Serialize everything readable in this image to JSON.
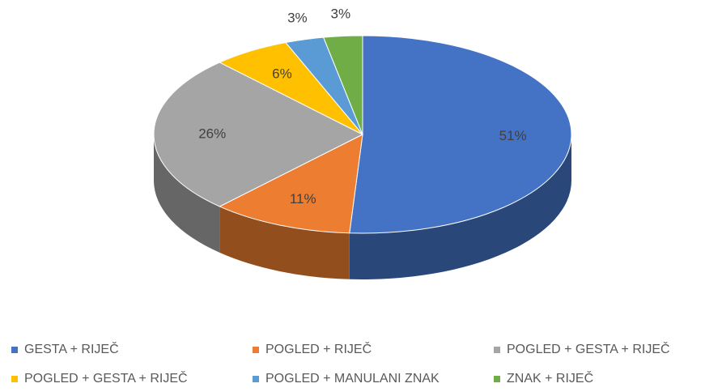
{
  "chart_data": {
    "type": "pie3d",
    "categories": [
      "GESTA + RIJEČ",
      "POGLED + RIJEČ",
      "POGLED + GESTA + RIJEČ",
      "POGLED + GESTA + RIJEČ",
      "POGLED + MANULANI ZNAK",
      "ZNAK + RIJEČ"
    ],
    "values": [
      51,
      11,
      26,
      6,
      3,
      3
    ],
    "value_labels": [
      "51%",
      "11%",
      "26%",
      "6%",
      "3%",
      "3%"
    ],
    "colors": [
      "#4472c4",
      "#ed7d31",
      "#a5a5a5",
      "#ffc000",
      "#5b9bd5",
      "#70ad47"
    ],
    "legend": "bottom"
  }
}
